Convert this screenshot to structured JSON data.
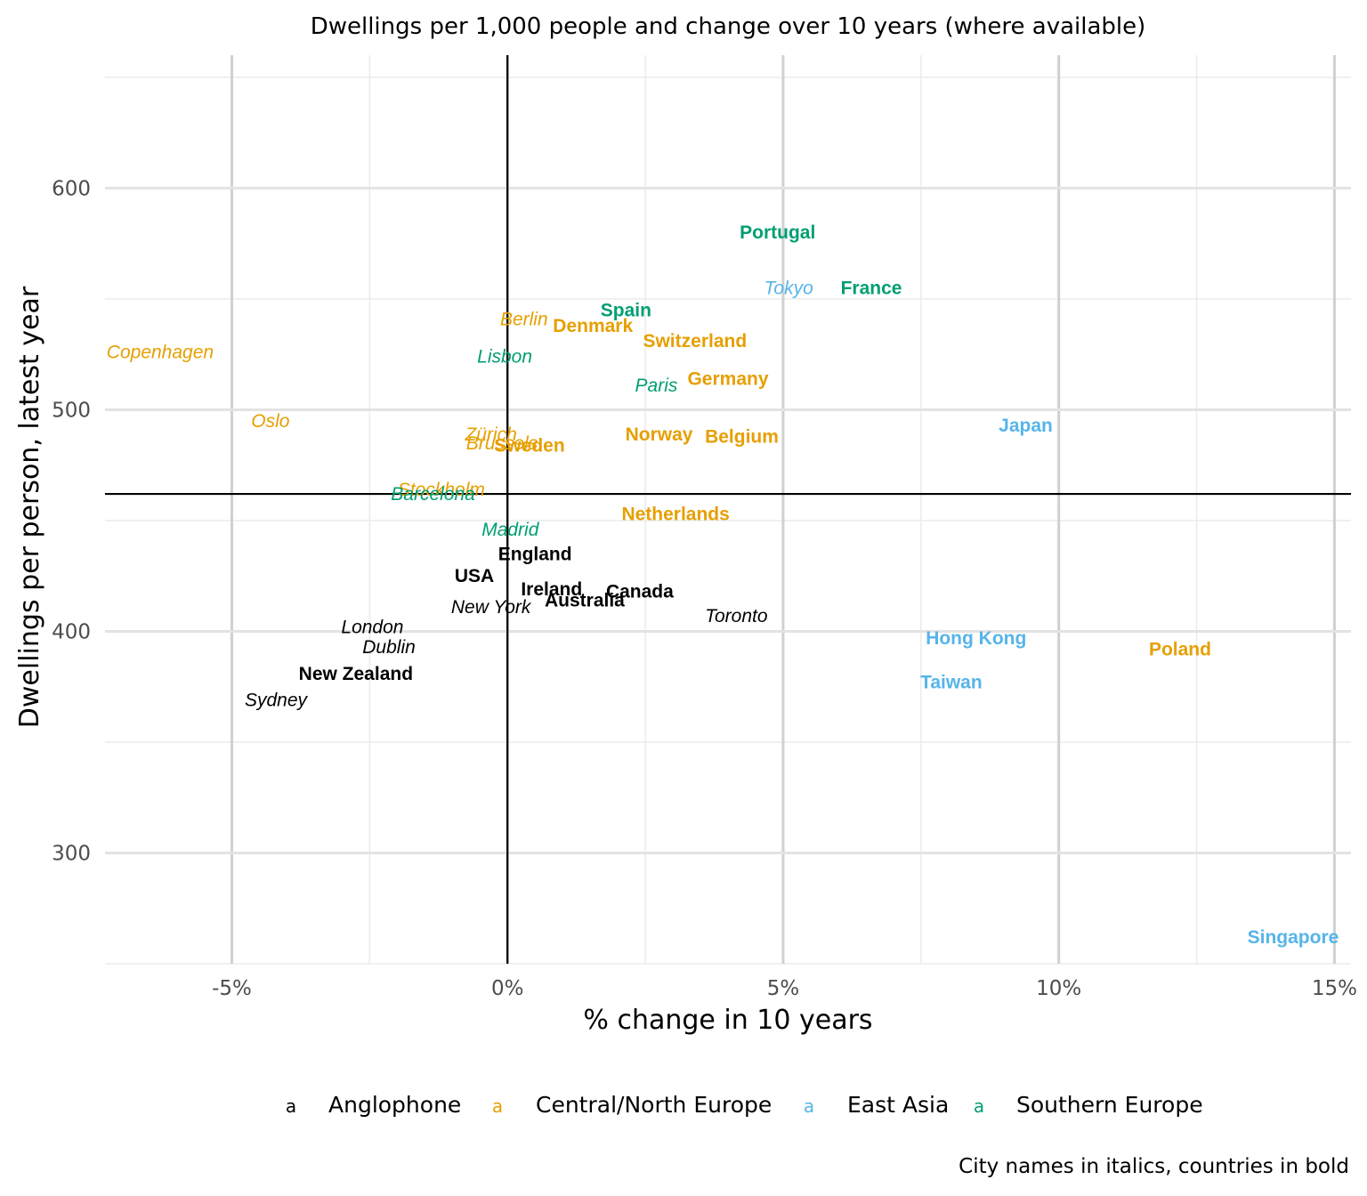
{
  "chart_data": {
    "type": "scatter",
    "title": "Dwellings per 1,000 people and change over 10 years (where available)",
    "xlabel": "% change in 10 years",
    "ylabel": "Dwellings per person, latest year",
    "caption": "City names in italics, countries in bold",
    "xlim": [
      -7.3,
      15.3
    ],
    "ylim": [
      250,
      660
    ],
    "x_ticks": [
      -5,
      0,
      5,
      10,
      15
    ],
    "x_tick_labels": [
      "-5%",
      "0%",
      "5%",
      "10%",
      "15%"
    ],
    "y_ticks": [
      300,
      400,
      500,
      600
    ],
    "y_tick_labels": [
      "300",
      "400",
      "500",
      "600"
    ],
    "reference_lines": {
      "x": 0,
      "y": 462
    },
    "grid": true,
    "legend_position": "bottom",
    "legend_key_glyph": "a",
    "groups": [
      {
        "name": "Anglophone",
        "color": "#000000"
      },
      {
        "name": "Central/North Europe",
        "color": "#E69F00"
      },
      {
        "name": "East Asia",
        "color": "#56B4E9"
      },
      {
        "name": "Southern Europe",
        "color": "#009E73"
      }
    ],
    "points": [
      {
        "label": "Copenhagen",
        "x": -6.3,
        "y": 526,
        "group": "Central/North Europe",
        "kind": "city"
      },
      {
        "label": "Oslo",
        "x": -4.3,
        "y": 495,
        "group": "Central/North Europe",
        "kind": "city"
      },
      {
        "label": "Berlin",
        "x": 0.3,
        "y": 541,
        "group": "Central/North Europe",
        "kind": "city"
      },
      {
        "label": "Denmark",
        "x": 1.55,
        "y": 538,
        "group": "Central/North Europe",
        "kind": "country"
      },
      {
        "label": "Switzerland",
        "x": 3.4,
        "y": 531,
        "group": "Central/North Europe",
        "kind": "country"
      },
      {
        "label": "Germany",
        "x": 4.0,
        "y": 514,
        "group": "Central/North Europe",
        "kind": "country"
      },
      {
        "label": "Zürich",
        "x": -0.3,
        "y": 489,
        "group": "Central/North Europe",
        "kind": "city"
      },
      {
        "label": "Brussels",
        "x": -0.1,
        "y": 485,
        "group": "Central/North Europe",
        "kind": "city"
      },
      {
        "label": "Sweden",
        "x": 0.4,
        "y": 484,
        "group": "Central/North Europe",
        "kind": "country"
      },
      {
        "label": "Norway",
        "x": 2.75,
        "y": 489,
        "group": "Central/North Europe",
        "kind": "country"
      },
      {
        "label": "Belgium",
        "x": 4.25,
        "y": 488,
        "group": "Central/North Europe",
        "kind": "country"
      },
      {
        "label": "Stockholm",
        "x": -1.2,
        "y": 464,
        "group": "Central/North Europe",
        "kind": "city"
      },
      {
        "label": "Netherlands",
        "x": 3.05,
        "y": 453,
        "group": "Central/North Europe",
        "kind": "country"
      },
      {
        "label": "Poland",
        "x": 12.2,
        "y": 392,
        "group": "Central/North Europe",
        "kind": "country"
      },
      {
        "label": "Portugal",
        "x": 4.9,
        "y": 580,
        "group": "Southern Europe",
        "kind": "country"
      },
      {
        "label": "France",
        "x": 6.6,
        "y": 555,
        "group": "Southern Europe",
        "kind": "country"
      },
      {
        "label": "Spain",
        "x": 2.15,
        "y": 545,
        "group": "Southern Europe",
        "kind": "country"
      },
      {
        "label": "Lisbon",
        "x": -0.05,
        "y": 524,
        "group": "Southern Europe",
        "kind": "city"
      },
      {
        "label": "Paris",
        "x": 2.7,
        "y": 511,
        "group": "Southern Europe",
        "kind": "city"
      },
      {
        "label": "Barcelona",
        "x": -1.35,
        "y": 462,
        "group": "Southern Europe",
        "kind": "city"
      },
      {
        "label": "Madrid",
        "x": 0.05,
        "y": 446,
        "group": "Southern Europe",
        "kind": "city"
      },
      {
        "label": "Tokyo",
        "x": 5.1,
        "y": 555,
        "group": "East Asia",
        "kind": "city"
      },
      {
        "label": "Japan",
        "x": 9.4,
        "y": 493,
        "group": "East Asia",
        "kind": "country"
      },
      {
        "label": "Hong Kong",
        "x": 8.5,
        "y": 397,
        "group": "East Asia",
        "kind": "country"
      },
      {
        "label": "Taiwan",
        "x": 8.05,
        "y": 377,
        "group": "East Asia",
        "kind": "country"
      },
      {
        "label": "Singapore",
        "x": 14.25,
        "y": 262,
        "group": "East Asia",
        "kind": "country"
      },
      {
        "label": "England",
        "x": 0.5,
        "y": 435,
        "group": "Anglophone",
        "kind": "country"
      },
      {
        "label": "USA",
        "x": -0.6,
        "y": 425,
        "group": "Anglophone",
        "kind": "country"
      },
      {
        "label": "Ireland",
        "x": 0.8,
        "y": 419,
        "group": "Anglophone",
        "kind": "country"
      },
      {
        "label": "Canada",
        "x": 2.4,
        "y": 418,
        "group": "Anglophone",
        "kind": "country"
      },
      {
        "label": "Australia",
        "x": 1.4,
        "y": 414,
        "group": "Anglophone",
        "kind": "country"
      },
      {
        "label": "New York",
        "x": -0.3,
        "y": 411,
        "group": "Anglophone",
        "kind": "city"
      },
      {
        "label": "Toronto",
        "x": 4.15,
        "y": 407,
        "group": "Anglophone",
        "kind": "city"
      },
      {
        "label": "London",
        "x": -2.45,
        "y": 402,
        "group": "Anglophone",
        "kind": "city"
      },
      {
        "label": "Dublin",
        "x": -2.15,
        "y": 393,
        "group": "Anglophone",
        "kind": "city"
      },
      {
        "label": "New Zealand",
        "x": -2.75,
        "y": 381,
        "group": "Anglophone",
        "kind": "country"
      },
      {
        "label": "Sydney",
        "x": -4.2,
        "y": 369,
        "group": "Anglophone",
        "kind": "city"
      }
    ]
  }
}
